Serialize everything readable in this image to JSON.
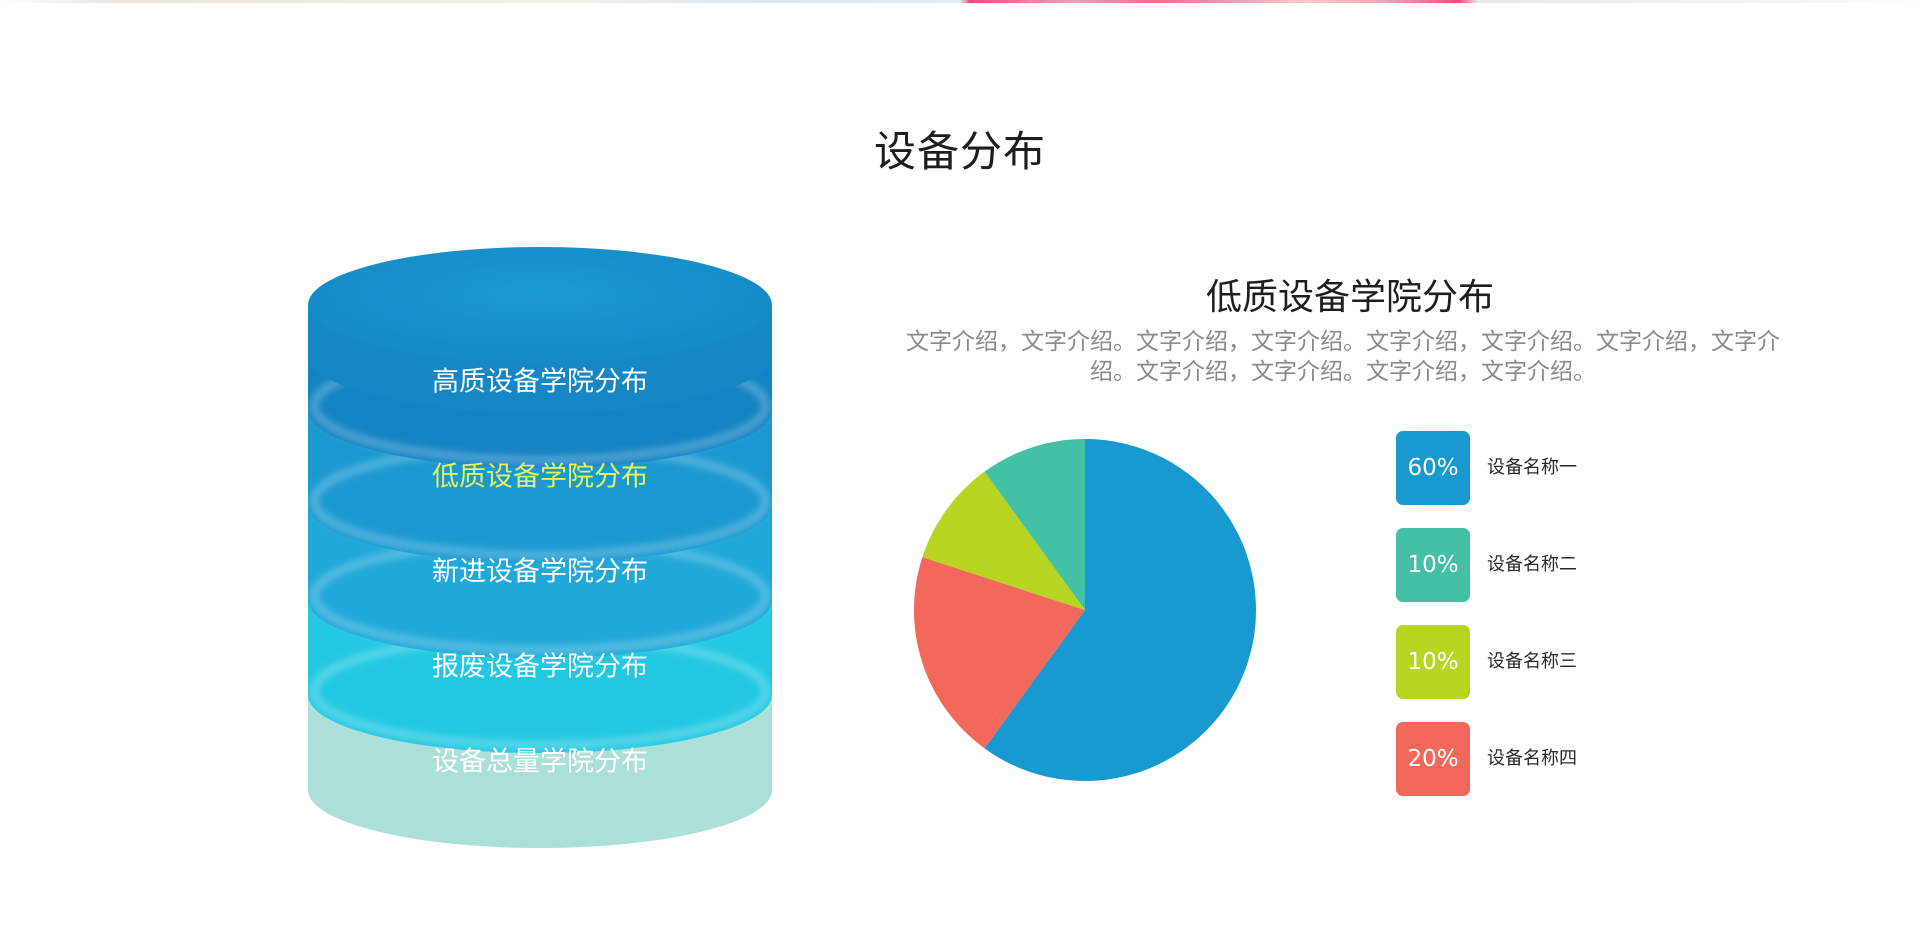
{
  "page": {
    "title": "设备分布"
  },
  "stack": {
    "layers": [
      {
        "label": "高质设备学院分布",
        "color": "#1483c3",
        "text_color": "#ffffff"
      },
      {
        "label": "低质设备学院分布",
        "color": "#1a99d1",
        "text_color": "#e6f25b"
      },
      {
        "label": "新进设备学院分布",
        "color": "#1fa8d9",
        "text_color": "#ffffff"
      },
      {
        "label": "报废设备学院分布",
        "color": "#22c8e2",
        "text_color": "#ffffff"
      },
      {
        "label": "设备总量学院分布",
        "color": "#abe0d8",
        "text_color": "#ffffff"
      }
    ],
    "top_color": "#1693cb"
  },
  "detail": {
    "title": "低质设备学院分布",
    "description": "文字介绍，文字介绍。文字介绍，文字介绍。文字介绍，文字介绍。文字介绍，文字介绍。文字介绍，文字介绍。文字介绍，文字介绍。"
  },
  "chart_data": {
    "type": "pie",
    "slices": [
      {
        "label": "设备名称一",
        "value": 60,
        "display": "60%",
        "color": "#1899cf"
      },
      {
        "label": "设备名称二",
        "value": 10,
        "display": "10%",
        "color": "#44c0a5"
      },
      {
        "label": "设备名称三",
        "value": 10,
        "display": "10%",
        "color": "#b8d522"
      },
      {
        "label": "设备名称四",
        "value": 20,
        "display": "20%",
        "color": "#f2685a"
      }
    ],
    "drawing_order": [
      "设备名称一",
      "设备名称四",
      "设备名称三",
      "设备名称二"
    ],
    "legend_position": "right"
  }
}
